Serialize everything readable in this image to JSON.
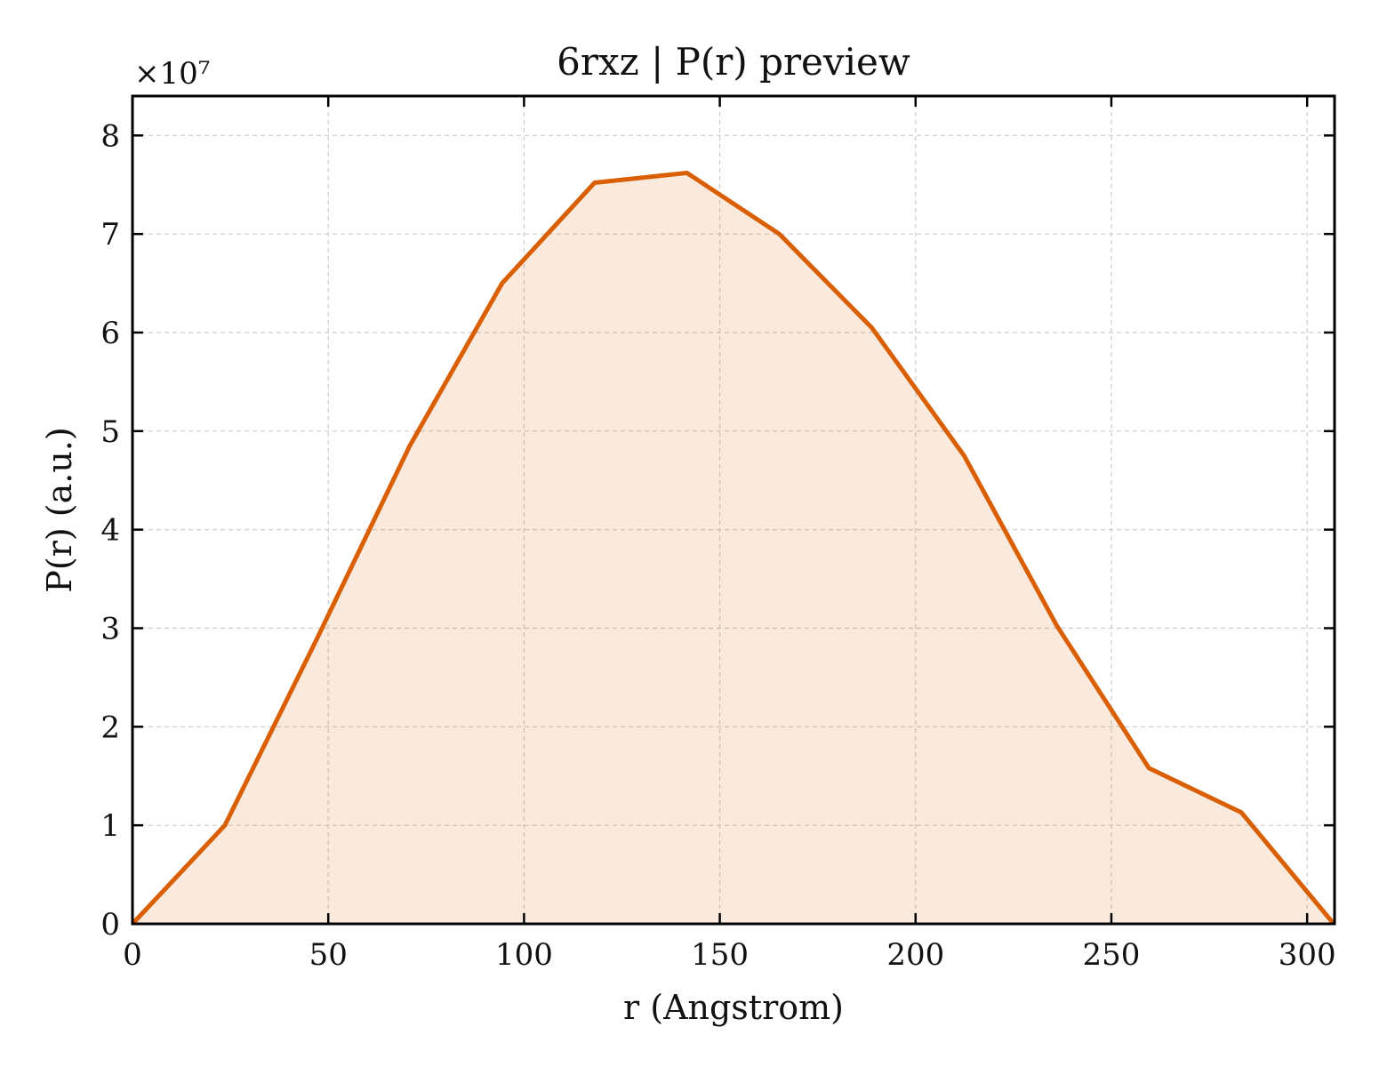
{
  "chart_data": {
    "type": "area",
    "title": "6rxz | P(r) preview",
    "xlabel": "r (Angstrom)",
    "ylabel": "P(r) (a.u.)",
    "y_multiplier": "×10⁷",
    "xlim": [
      0,
      307
    ],
    "ylim": [
      0,
      8.4
    ],
    "y_scale_factor": 10000000,
    "x_ticks": [
      0,
      50,
      100,
      150,
      200,
      250,
      300
    ],
    "y_ticks": [
      0,
      1,
      2,
      3,
      4,
      5,
      6,
      7,
      8
    ],
    "grid": true,
    "series": [
      {
        "x": [
          0,
          23.6,
          47.2,
          70.8,
          94.4,
          118,
          141.6,
          165.2,
          188.8,
          212.4,
          236,
          259.6,
          283.2,
          306.8
        ],
        "values": [
          0,
          1.0,
          2.9,
          4.85,
          6.5,
          7.52,
          7.62,
          7.0,
          6.05,
          4.75,
          3.03,
          1.58,
          1.13,
          0
        ],
        "color": "#d95f02",
        "fill_color": "#d95f02",
        "fill_opacity": 0.13
      }
    ]
  }
}
